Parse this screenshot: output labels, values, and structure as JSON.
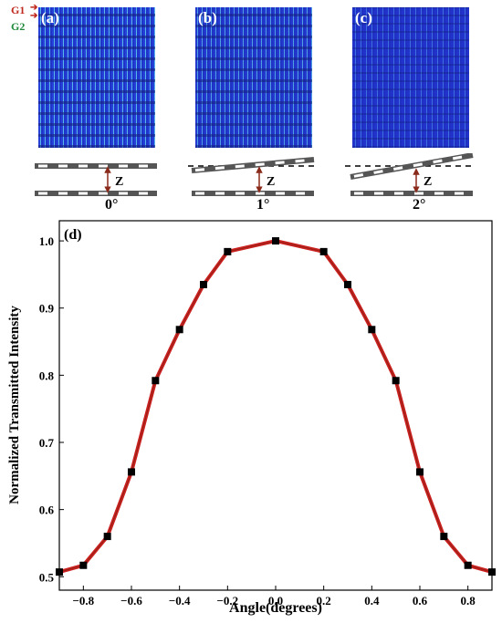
{
  "grating_labels": {
    "g1": "G1",
    "g2": "G2"
  },
  "panels": [
    {
      "label": "(a)",
      "angle": "0°",
      "gap_label": "Z"
    },
    {
      "label": "(b)",
      "angle": "1°",
      "gap_label": "Z"
    },
    {
      "label": "(c)",
      "angle": "2°",
      "gap_label": "Z"
    }
  ],
  "colors": {
    "line": "#cc1f1f",
    "marker": "#000000",
    "field": "#1d2fc4"
  },
  "chart_data": {
    "type": "line",
    "panel_label": "(d)",
    "xlabel": "Angle(degrees)",
    "ylabel": "Normalized Transmitted Intensity",
    "xlim": [
      -0.9,
      0.9
    ],
    "ylim": [
      0.48,
      1.03
    ],
    "xticks": [
      "-0.8",
      "-0.6",
      "-0.4",
      "-0.2",
      "0.0",
      "0.2",
      "0.4",
      "0.6",
      "0.8"
    ],
    "yticks": [
      "0.5",
      "0.6",
      "0.7",
      "0.8",
      "0.9",
      "1.0"
    ],
    "x": [
      -0.9,
      -0.8,
      -0.7,
      -0.6,
      -0.5,
      -0.4,
      -0.3,
      -0.2,
      0.0,
      0.2,
      0.3,
      0.4,
      0.5,
      0.6,
      0.7,
      0.8,
      0.9
    ],
    "y": [
      0.507,
      0.517,
      0.56,
      0.656,
      0.792,
      0.868,
      0.935,
      0.984,
      1.0,
      0.984,
      0.935,
      0.868,
      0.792,
      0.656,
      0.56,
      0.517,
      0.507
    ]
  }
}
